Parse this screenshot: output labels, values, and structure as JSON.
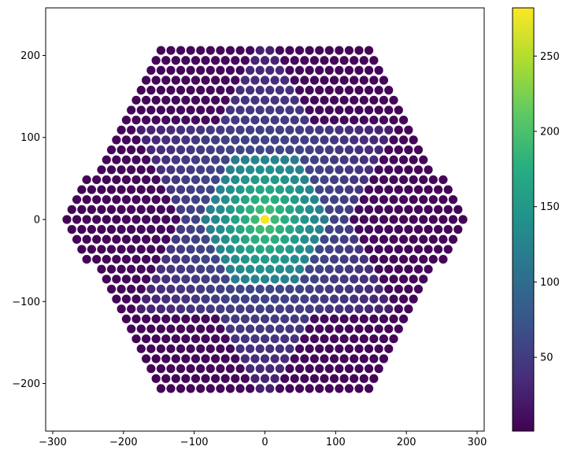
{
  "chart_data": {
    "type": "scatter",
    "title": "",
    "xlabel": "",
    "ylabel": "",
    "xlim": [
      -310,
      310
    ],
    "ylim": [
      -258,
      258
    ],
    "xticks": [
      -300,
      -200,
      -100,
      0,
      100,
      200,
      300
    ],
    "yticks": [
      -200,
      -100,
      0,
      100,
      200
    ],
    "grid": false,
    "points": {
      "layout": "hexagonal lattice of circular markers",
      "lattice_spacing": 14,
      "hexagon_extent": {
        "x": [
          -280,
          280
        ],
        "y": [
          -235,
          235
        ]
      },
      "regions": [
        {
          "name": "outer hexagon",
          "value_range": [
            1,
            10
          ]
        },
        {
          "name": "six-pointed star band",
          "value_range": [
            20,
            60
          ]
        },
        {
          "name": "inner core",
          "value_range": [
            120,
            190
          ]
        },
        {
          "name": "center",
          "value": 280
        }
      ]
    },
    "colorbar": {
      "colormap": "viridis",
      "range": [
        1,
        282
      ],
      "ticks": [
        50,
        100,
        150,
        200,
        250
      ]
    }
  }
}
